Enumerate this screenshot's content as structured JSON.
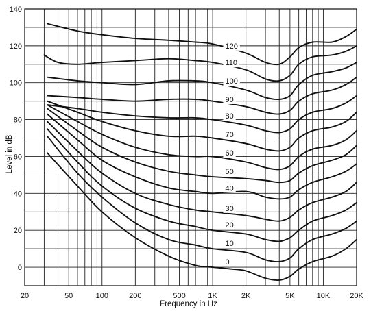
{
  "chart_data": {
    "type": "line",
    "title": "",
    "xlabel": "Frequency in Hz",
    "ylabel": "Level in dB",
    "x_scale": "log",
    "xlim": [
      20,
      20000
    ],
    "ylim": [
      -10,
      140
    ],
    "grid": true,
    "legend": "none",
    "x_major_ticks": [
      {
        "value": 20,
        "label": "20"
      },
      {
        "value": 50,
        "label": "50"
      },
      {
        "value": 100,
        "label": "100"
      },
      {
        "value": 200,
        "label": "200"
      },
      {
        "value": 500,
        "label": "500"
      },
      {
        "value": 1000,
        "label": "1K"
      },
      {
        "value": 2000,
        "label": "2K"
      },
      {
        "value": 5000,
        "label": "5K"
      },
      {
        "value": 10000,
        "label": "10K"
      },
      {
        "value": 20000,
        "label": "20K"
      }
    ],
    "x_grid_values": [
      20,
      30,
      40,
      50,
      60,
      70,
      80,
      90,
      100,
      200,
      300,
      400,
      500,
      600,
      700,
      800,
      900,
      1000,
      2000,
      3000,
      4000,
      5000,
      6000,
      7000,
      8000,
      9000,
      10000,
      20000
    ],
    "y_ticks": [
      0,
      20,
      40,
      60,
      80,
      100,
      120,
      140
    ],
    "y_grid_step": 10,
    "series": [
      {
        "name": "120",
        "label_at": [
          1300,
          120
        ],
        "points": [
          [
            32,
            132
          ],
          [
            60,
            128
          ],
          [
            100,
            126
          ],
          [
            200,
            124
          ],
          [
            400,
            123
          ],
          [
            700,
            122
          ],
          [
            1000,
            121
          ],
          [
            2000,
            116
          ],
          [
            3000,
            111
          ],
          [
            4000,
            110
          ],
          [
            5000,
            114
          ],
          [
            6000,
            119
          ],
          [
            8000,
            122
          ],
          [
            12000,
            122
          ],
          [
            16000,
            125
          ],
          [
            20000,
            129
          ]
        ]
      },
      {
        "name": "110",
        "label_at": [
          1300,
          111
        ],
        "points": [
          [
            30,
            115
          ],
          [
            40,
            111
          ],
          [
            60,
            110
          ],
          [
            100,
            111
          ],
          [
            200,
            112
          ],
          [
            400,
            113
          ],
          [
            700,
            112
          ],
          [
            1000,
            111
          ],
          [
            2000,
            107
          ],
          [
            3000,
            102
          ],
          [
            4000,
            101
          ],
          [
            5000,
            104
          ],
          [
            6000,
            110
          ],
          [
            8000,
            114
          ],
          [
            12000,
            115
          ],
          [
            16000,
            117
          ],
          [
            20000,
            120
          ]
        ]
      },
      {
        "name": "100",
        "label_at": [
          1300,
          101
        ],
        "points": [
          [
            32,
            103
          ],
          [
            60,
            101
          ],
          [
            100,
            100
          ],
          [
            200,
            99
          ],
          [
            400,
            101
          ],
          [
            700,
            101
          ],
          [
            1000,
            100
          ],
          [
            2000,
            96
          ],
          [
            3000,
            92
          ],
          [
            4000,
            91
          ],
          [
            5000,
            93
          ],
          [
            6000,
            99
          ],
          [
            8000,
            104
          ],
          [
            12000,
            106
          ],
          [
            16000,
            108
          ],
          [
            20000,
            111
          ]
        ]
      },
      {
        "name": "90",
        "label_at": [
          1300,
          91
        ],
        "points": [
          [
            32,
            93
          ],
          [
            60,
            92
          ],
          [
            100,
            91
          ],
          [
            200,
            90
          ],
          [
            400,
            91
          ],
          [
            700,
            91
          ],
          [
            1000,
            90
          ],
          [
            2000,
            87
          ],
          [
            3000,
            84
          ],
          [
            4000,
            83
          ],
          [
            5000,
            85
          ],
          [
            6000,
            90
          ],
          [
            8000,
            94
          ],
          [
            12000,
            96
          ],
          [
            16000,
            99
          ],
          [
            20000,
            103
          ]
        ]
      },
      {
        "name": "80",
        "label_at": [
          1300,
          82
        ],
        "points": [
          [
            32,
            88
          ],
          [
            60,
            86
          ],
          [
            100,
            84
          ],
          [
            200,
            82
          ],
          [
            400,
            81
          ],
          [
            700,
            81
          ],
          [
            1000,
            80
          ],
          [
            2000,
            77
          ],
          [
            3000,
            74
          ],
          [
            4000,
            73
          ],
          [
            5000,
            75
          ],
          [
            6000,
            80
          ],
          [
            8000,
            84
          ],
          [
            12000,
            86
          ],
          [
            16000,
            89
          ],
          [
            20000,
            93
          ]
        ]
      },
      {
        "name": "70",
        "label_at": [
          1300,
          72
        ],
        "points": [
          [
            32,
            90
          ],
          [
            60,
            84
          ],
          [
            100,
            79
          ],
          [
            200,
            74
          ],
          [
            400,
            71
          ],
          [
            700,
            71
          ],
          [
            1000,
            70
          ],
          [
            2000,
            67
          ],
          [
            3000,
            64
          ],
          [
            4000,
            63
          ],
          [
            5000,
            65
          ],
          [
            6000,
            70
          ],
          [
            8000,
            74
          ],
          [
            12000,
            76
          ],
          [
            16000,
            79
          ],
          [
            20000,
            84
          ]
        ]
      },
      {
        "name": "60",
        "label_at": [
          1300,
          62
        ],
        "points": [
          [
            32,
            88
          ],
          [
            60,
            79
          ],
          [
            100,
            72
          ],
          [
            200,
            65
          ],
          [
            400,
            61
          ],
          [
            700,
            60
          ],
          [
            1000,
            60
          ],
          [
            2000,
            57
          ],
          [
            3000,
            54
          ],
          [
            4000,
            53
          ],
          [
            5000,
            55
          ],
          [
            6000,
            60
          ],
          [
            8000,
            64
          ],
          [
            12000,
            66
          ],
          [
            16000,
            69
          ],
          [
            20000,
            74
          ]
        ]
      },
      {
        "name": "50",
        "label_at": [
          1300,
          52
        ],
        "points": [
          [
            32,
            86
          ],
          [
            60,
            74
          ],
          [
            100,
            65
          ],
          [
            200,
            57
          ],
          [
            400,
            52
          ],
          [
            700,
            50
          ],
          [
            1000,
            49
          ],
          [
            2000,
            48
          ],
          [
            3000,
            47
          ],
          [
            4000,
            46
          ],
          [
            5000,
            47
          ],
          [
            6000,
            51
          ],
          [
            8000,
            55
          ],
          [
            12000,
            58
          ],
          [
            16000,
            61
          ],
          [
            20000,
            66
          ]
        ]
      },
      {
        "name": "40",
        "label_at": [
          1300,
          43
        ],
        "points": [
          [
            32,
            83
          ],
          [
            60,
            69
          ],
          [
            100,
            58
          ],
          [
            200,
            49
          ],
          [
            400,
            43
          ],
          [
            700,
            41
          ],
          [
            1000,
            40
          ],
          [
            2000,
            41
          ],
          [
            3000,
            38
          ],
          [
            4000,
            37
          ],
          [
            5000,
            38
          ],
          [
            6000,
            42
          ],
          [
            8000,
            46
          ],
          [
            12000,
            49
          ],
          [
            16000,
            52
          ],
          [
            20000,
            56
          ]
        ]
      },
      {
        "name": "30",
        "label_at": [
          1300,
          32
        ],
        "points": [
          [
            32,
            79
          ],
          [
            60,
            63
          ],
          [
            100,
            51
          ],
          [
            200,
            40
          ],
          [
            400,
            34
          ],
          [
            700,
            31
          ],
          [
            1000,
            30
          ],
          [
            2000,
            28
          ],
          [
            3000,
            26
          ],
          [
            4000,
            25
          ],
          [
            5000,
            27
          ],
          [
            6000,
            31
          ],
          [
            8000,
            35
          ],
          [
            12000,
            38
          ],
          [
            16000,
            41
          ],
          [
            20000,
            46
          ]
        ]
      },
      {
        "name": "20",
        "label_at": [
          1300,
          23
        ],
        "points": [
          [
            32,
            75
          ],
          [
            60,
            57
          ],
          [
            100,
            44
          ],
          [
            200,
            32
          ],
          [
            400,
            25
          ],
          [
            700,
            22
          ],
          [
            1000,
            20
          ],
          [
            2000,
            18
          ],
          [
            3000,
            15
          ],
          [
            4000,
            14
          ],
          [
            5000,
            16
          ],
          [
            6000,
            20
          ],
          [
            8000,
            25
          ],
          [
            12000,
            28
          ],
          [
            16000,
            31
          ],
          [
            20000,
            35
          ]
        ]
      },
      {
        "name": "10",
        "label_at": [
          1300,
          13
        ],
        "points": [
          [
            32,
            71
          ],
          [
            60,
            51
          ],
          [
            100,
            38
          ],
          [
            200,
            24
          ],
          [
            400,
            15
          ],
          [
            700,
            12
          ],
          [
            1000,
            10
          ],
          [
            2000,
            8
          ],
          [
            3000,
            4
          ],
          [
            4000,
            3
          ],
          [
            5000,
            5
          ],
          [
            6000,
            10
          ],
          [
            8000,
            15
          ],
          [
            12000,
            18
          ],
          [
            16000,
            21
          ],
          [
            20000,
            25
          ]
        ]
      },
      {
        "name": "0",
        "label_at": [
          1300,
          3
        ],
        "points": [
          [
            32,
            62
          ],
          [
            60,
            44
          ],
          [
            100,
            30
          ],
          [
            200,
            16
          ],
          [
            400,
            6
          ],
          [
            700,
            1
          ],
          [
            1000,
            0
          ],
          [
            1500,
            -1
          ],
          [
            2000,
            -2
          ],
          [
            3000,
            -6
          ],
          [
            4000,
            -7
          ],
          [
            5000,
            -5
          ],
          [
            6000,
            -1
          ],
          [
            8000,
            3
          ],
          [
            12000,
            6
          ],
          [
            16000,
            10
          ],
          [
            20000,
            15
          ]
        ]
      }
    ]
  }
}
